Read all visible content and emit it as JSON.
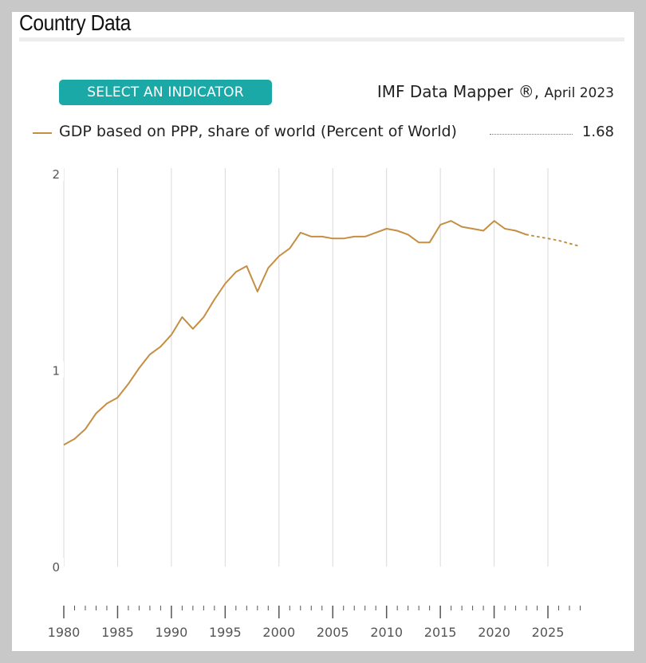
{
  "header": {
    "title": "Country Data"
  },
  "toolbar": {
    "select_indicator_label": "SELECT AN INDICATOR",
    "source_name": "IMF Data Mapper ®,",
    "source_date": "April 2023"
  },
  "legend": {
    "label": "GDP based on PPP, share of world (Percent of World)",
    "value": "1.68"
  },
  "colors": {
    "series": "#c58f43",
    "button": "#1aa9a6",
    "grid": "#d9d9d9",
    "axis_text": "#555555"
  },
  "chart_data": {
    "type": "line",
    "title": "",
    "xlabel": "",
    "ylabel": "",
    "xlim": [
      1980,
      2028
    ],
    "ylim": [
      0,
      2
    ],
    "y_ticks": [
      "0",
      "1",
      "2"
    ],
    "x_tick_labels": [
      "1980",
      "1985",
      "1990",
      "1995",
      "2000",
      "2005",
      "2010",
      "2015",
      "2020",
      "2025"
    ],
    "grid": "vertical",
    "series": [
      {
        "name": "GDP based on PPP, share of world (Percent of World)",
        "x": [
          1980,
          1981,
          1982,
          1983,
          1984,
          1985,
          1986,
          1987,
          1988,
          1989,
          1990,
          1991,
          1992,
          1993,
          1994,
          1995,
          1996,
          1997,
          1998,
          1999,
          2000,
          2001,
          2002,
          2003,
          2004,
          2005,
          2006,
          2007,
          2008,
          2009,
          2010,
          2011,
          2012,
          2013,
          2014,
          2015,
          2016,
          2017,
          2018,
          2019,
          2020,
          2021,
          2022,
          2023,
          2024,
          2025,
          2026,
          2027,
          2028
        ],
        "y": [
          0.62,
          0.65,
          0.7,
          0.78,
          0.83,
          0.86,
          0.93,
          1.01,
          1.08,
          1.12,
          1.18,
          1.27,
          1.21,
          1.27,
          1.36,
          1.44,
          1.5,
          1.53,
          1.4,
          1.52,
          1.58,
          1.62,
          1.7,
          1.68,
          1.68,
          1.67,
          1.67,
          1.68,
          1.68,
          1.7,
          1.72,
          1.71,
          1.69,
          1.65,
          1.65,
          1.74,
          1.76,
          1.73,
          1.72,
          1.71,
          1.76,
          1.72,
          1.71,
          1.69,
          1.68,
          1.67,
          1.66,
          1.645,
          1.63
        ],
        "projection_start": 2023
      }
    ]
  }
}
